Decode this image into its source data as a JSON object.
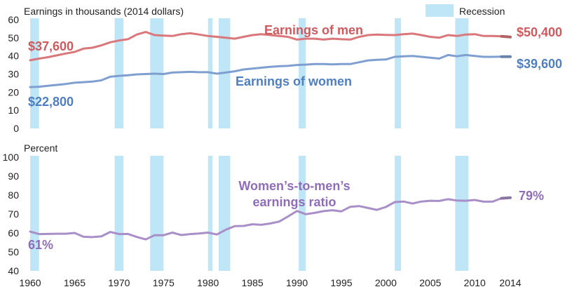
{
  "chart_data": [
    {
      "type": "line",
      "title": "Earnings in thousands (2014 dollars)",
      "legend": {
        "label": "Recession",
        "color": "#bfe6f7",
        "placement": "top-right"
      },
      "ylim": [
        0,
        60
      ],
      "yticks": [
        "0",
        "10",
        "20",
        "30",
        "40",
        "50",
        "60"
      ],
      "xlim": [
        1960,
        2014
      ],
      "recessions": [
        [
          1960,
          1961
        ],
        [
          1969.5,
          1970.5
        ],
        [
          1973.5,
          1975
        ],
        [
          1980,
          1980.5
        ],
        [
          1981.2,
          1982.5
        ],
        [
          1990.2,
          1991
        ],
        [
          2001,
          2001.7
        ],
        [
          2007.8,
          2009.3
        ]
      ],
      "series": [
        {
          "name": "Earnings of men",
          "color": "#d9777a",
          "start_label": "$37,600",
          "end_label": "$50,400",
          "x": [
            1960,
            1961,
            1962,
            1963,
            1964,
            1965,
            1966,
            1967,
            1968,
            1969,
            1970,
            1971,
            1972,
            1973,
            1974,
            1975,
            1976,
            1977,
            1978,
            1979,
            1980,
            1981,
            1982,
            1983,
            1984,
            1985,
            1986,
            1987,
            1988,
            1989,
            1990,
            1991,
            1992,
            1993,
            1994,
            1995,
            1996,
            1997,
            1998,
            1999,
            2000,
            2001,
            2002,
            2003,
            2004,
            2005,
            2006,
            2007,
            2008,
            2009,
            2010,
            2011,
            2012,
            2013,
            2014
          ],
          "values": [
            37.6,
            38.5,
            39.3,
            40.3,
            41.3,
            42.2,
            44.0,
            44.5,
            45.8,
            47.5,
            48.5,
            49.2,
            51.8,
            53.2,
            51.5,
            51.2,
            51.0,
            52.0,
            52.5,
            51.8,
            51.0,
            50.5,
            50.0,
            49.5,
            50.5,
            51.5,
            52.0,
            51.5,
            51.0,
            50.5,
            49.0,
            49.5,
            49.5,
            49.0,
            49.5,
            49.2,
            49.0,
            50.5,
            51.5,
            51.8,
            51.6,
            51.5,
            52.0,
            52.3,
            51.5,
            50.5,
            50.0,
            51.5,
            51.0,
            51.8,
            52.0,
            51.0,
            51.0,
            50.8,
            50.4
          ]
        },
        {
          "name": "Earnings of women",
          "color": "#7f9fd0",
          "start_label": "$22,800",
          "end_label": "$39,600",
          "x": [
            1960,
            1961,
            1962,
            1963,
            1964,
            1965,
            1966,
            1967,
            1968,
            1969,
            1970,
            1971,
            1972,
            1973,
            1974,
            1975,
            1976,
            1977,
            1978,
            1979,
            1980,
            1981,
            1982,
            1983,
            1984,
            1985,
            1986,
            1987,
            1988,
            1989,
            1990,
            1991,
            1992,
            1993,
            1994,
            1995,
            1996,
            1997,
            1998,
            1999,
            2000,
            2001,
            2002,
            2003,
            2004,
            2005,
            2006,
            2007,
            2008,
            2009,
            2010,
            2011,
            2012,
            2013,
            2014
          ],
          "values": [
            22.8,
            23.0,
            23.5,
            24.0,
            24.5,
            25.2,
            25.5,
            25.8,
            26.5,
            28.5,
            29.0,
            29.3,
            29.8,
            30.0,
            30.2,
            30.0,
            30.8,
            31.0,
            31.2,
            31.0,
            31.0,
            30.2,
            30.8,
            31.5,
            32.5,
            33.0,
            33.5,
            34.0,
            34.3,
            34.5,
            35.0,
            35.2,
            35.5,
            35.5,
            35.3,
            35.5,
            35.5,
            36.5,
            37.5,
            37.8,
            38.0,
            39.5,
            39.8,
            40.0,
            39.5,
            39.0,
            38.5,
            40.5,
            39.8,
            40.5,
            40.0,
            39.5,
            39.5,
            39.6,
            39.6
          ]
        }
      ]
    },
    {
      "type": "line",
      "title": "Percent",
      "ylim": [
        40,
        100
      ],
      "yticks": [
        "40",
        "50",
        "60",
        "70",
        "80",
        "90",
        "100"
      ],
      "xlim": [
        1960,
        2014
      ],
      "xticks": [
        "1960",
        "1965",
        "1970",
        "1975",
        "1980",
        "1985",
        "1990",
        "1995",
        "2000",
        "2005",
        "2010",
        "2014"
      ],
      "xtick_values": [
        1960,
        1965,
        1970,
        1975,
        1980,
        1985,
        1990,
        1995,
        2000,
        2005,
        2010,
        2014
      ],
      "recessions": [
        [
          1960,
          1961
        ],
        [
          1969.5,
          1970.5
        ],
        [
          1973.5,
          1975
        ],
        [
          1980,
          1980.5
        ],
        [
          1981.2,
          1982.5
        ],
        [
          1990.2,
          1991
        ],
        [
          2001,
          2001.7
        ],
        [
          2007.8,
          2009.3
        ]
      ],
      "series": [
        {
          "name": "Women’s-to-men’s earnings ratio",
          "name_lines": [
            "Women’s-to-men’s",
            "earnings ratio"
          ],
          "color": "#a98fc7",
          "start_label": "61%",
          "end_label": "79%",
          "x": [
            1960,
            1961,
            1962,
            1963,
            1964,
            1965,
            1966,
            1967,
            1968,
            1969,
            1970,
            1971,
            1972,
            1973,
            1974,
            1975,
            1976,
            1977,
            1978,
            1979,
            1980,
            1981,
            1982,
            1983,
            1984,
            1985,
            1986,
            1987,
            1988,
            1989,
            1990,
            1991,
            1992,
            1993,
            1994,
            1995,
            1996,
            1997,
            1998,
            1999,
            2000,
            2001,
            2002,
            2003,
            2004,
            2005,
            2006,
            2007,
            2008,
            2009,
            2010,
            2011,
            2012,
            2013,
            2014
          ],
          "values": [
            60.7,
            59.4,
            59.5,
            59.6,
            59.6,
            60.0,
            58.0,
            57.8,
            58.2,
            60.5,
            59.4,
            59.5,
            57.9,
            56.6,
            58.8,
            58.8,
            60.2,
            58.9,
            59.4,
            59.7,
            60.2,
            59.2,
            61.7,
            63.6,
            63.7,
            64.6,
            64.3,
            65.0,
            66.0,
            68.7,
            71.6,
            69.9,
            70.6,
            71.5,
            72.0,
            71.4,
            73.8,
            74.2,
            73.2,
            72.2,
            73.7,
            76.3,
            76.6,
            75.5,
            76.6,
            77.0,
            76.9,
            77.8,
            77.1,
            77.0,
            77.4,
            76.5,
            76.5,
            78.3,
            78.6
          ]
        }
      ]
    }
  ]
}
